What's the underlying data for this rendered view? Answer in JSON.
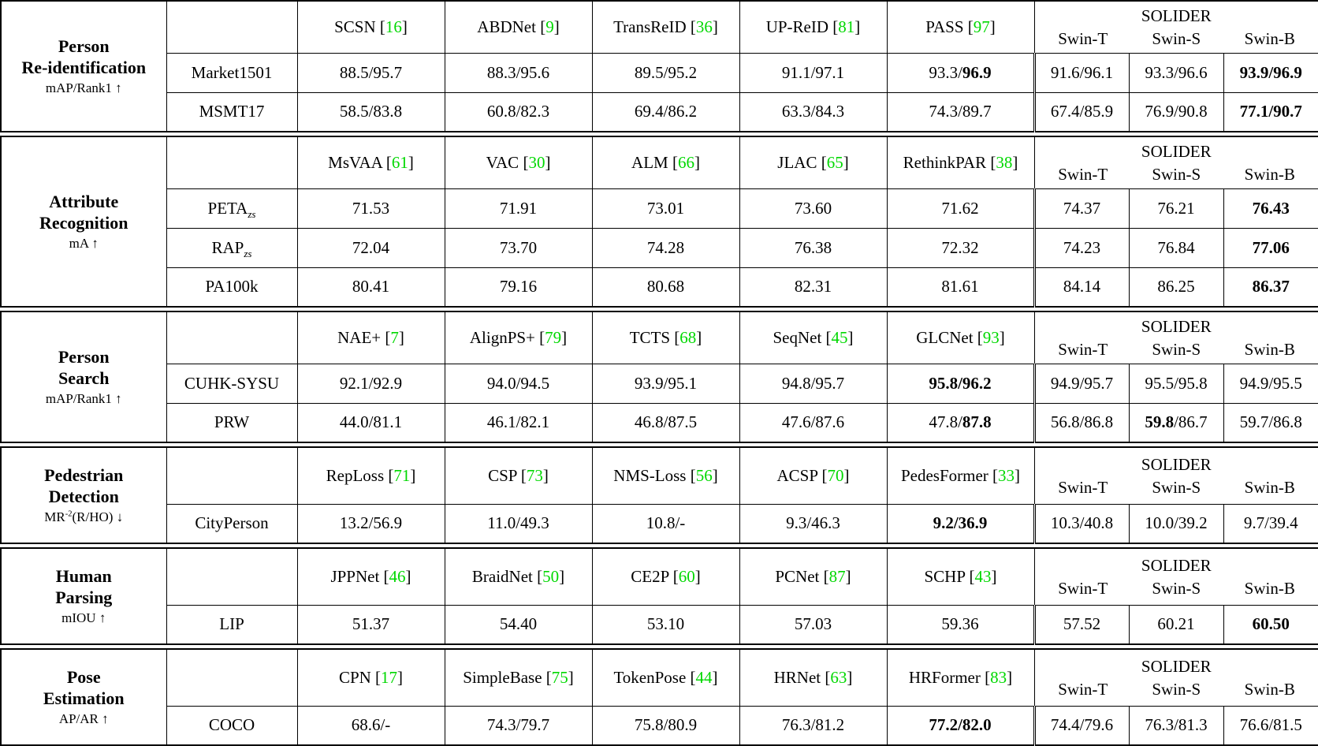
{
  "accent": {
    "citation_color": "#00d800"
  },
  "solider": {
    "label": "SOLIDER",
    "variants": [
      "Swin-T",
      "Swin-S",
      "Swin-B"
    ]
  },
  "sections": [
    {
      "task": [
        "Person",
        "Re-identification"
      ],
      "metric": "mAP/Rank1 ↑",
      "methods": [
        "SCSN [{{16}}]",
        "ABDNet [{{9}}]",
        "TransReID [{{36}}]",
        "UP-ReID [{{81}}]",
        "PASS [{{97}}]"
      ],
      "rows": [
        {
          "dataset": "Market1501",
          "values": [
            "88.5/95.7",
            "88.3/95.6",
            "89.5/95.2",
            "91.1/97.1",
            "93.3/*96.9*"
          ],
          "solider_values": [
            "91.6/96.1",
            "93.3/96.6",
            "*93.9/96.9*"
          ]
        },
        {
          "dataset": "MSMT17",
          "values": [
            "58.5/83.8",
            "60.8/82.3",
            "69.4/86.2",
            "63.3/84.3",
            "74.3/89.7"
          ],
          "solider_values": [
            "67.4/85.9",
            "76.9/90.8",
            "*77.1/90.7*"
          ]
        }
      ]
    },
    {
      "task": [
        "Attribute",
        "Recognition"
      ],
      "metric": "mA ↑",
      "methods": [
        "MsVAA [{{61}}]",
        "VAC [{{30}}]",
        "ALM [{{66}}]",
        "JLAC [{{65}}]",
        "RethinkPAR [{{38}}]"
      ],
      "rows": [
        {
          "dataset": "PETA~zs~",
          "values": [
            "71.53",
            "71.91",
            "73.01",
            "73.60",
            "71.62"
          ],
          "solider_values": [
            "74.37",
            "76.21",
            "*76.43*"
          ]
        },
        {
          "dataset": "RAP~zs~",
          "values": [
            "72.04",
            "73.70",
            "74.28",
            "76.38",
            "72.32"
          ],
          "solider_values": [
            "74.23",
            "76.84",
            "*77.06*"
          ]
        },
        {
          "dataset": "PA100k",
          "values": [
            "80.41",
            "79.16",
            "80.68",
            "82.31",
            "81.61"
          ],
          "solider_values": [
            "84.14",
            "86.25",
            "*86.37*"
          ]
        }
      ]
    },
    {
      "task": [
        "Person",
        "Search"
      ],
      "metric": "mAP/Rank1 ↑",
      "methods": [
        "NAE+ [{{7}}]",
        "AlignPS+ [{{79}}]",
        "TCTS [{{68}}]",
        "SeqNet [{{45}}]",
        "GLCNet [{{93}}]"
      ],
      "rows": [
        {
          "dataset": "CUHK-SYSU",
          "values": [
            "92.1/92.9",
            "94.0/94.5",
            "93.9/95.1",
            "94.8/95.7",
            "*95.8/96.2*"
          ],
          "solider_values": [
            "94.9/95.7",
            "95.5/95.8",
            "94.9/95.5"
          ]
        },
        {
          "dataset": "PRW",
          "values": [
            "44.0/81.1",
            "46.1/82.1",
            "46.8/87.5",
            "47.6/87.6",
            "47.8/*87.8*"
          ],
          "solider_values": [
            "56.8/86.8",
            "*59.8*/86.7",
            "59.7/86.8"
          ]
        }
      ]
    },
    {
      "task": [
        "Pedestrian",
        "Detection"
      ],
      "metric": "MR^-2^(R/HO) ↓",
      "methods": [
        "RepLoss [{{71}}]",
        "CSP [{{73}}]",
        "NMS-Loss [{{56}}]",
        "ACSP [{{70}}]",
        "PedesFormer [{{33}}]"
      ],
      "rows": [
        {
          "dataset": "CityPerson",
          "values": [
            "13.2/56.9",
            "11.0/49.3",
            "10.8/-",
            "9.3/46.3",
            "*9.2/36.9*"
          ],
          "solider_values": [
            "10.3/40.8",
            "10.0/39.2",
            "9.7/39.4"
          ]
        }
      ]
    },
    {
      "task": [
        "Human",
        "Parsing"
      ],
      "metric": "mIOU ↑",
      "methods": [
        "JPPNet [{{46}}]",
        "BraidNet [{{50}}]",
        "CE2P [{{60}}]",
        "PCNet [{{87}}]",
        "SCHP [{{43}}]"
      ],
      "rows": [
        {
          "dataset": "LIP",
          "values": [
            "51.37",
            "54.40",
            "53.10",
            "57.03",
            "59.36"
          ],
          "solider_values": [
            "57.52",
            "60.21",
            "*60.50*"
          ]
        }
      ]
    },
    {
      "task": [
        "Pose",
        "Estimation"
      ],
      "metric": "AP/AR ↑",
      "methods": [
        "CPN [{{17}}]",
        "SimpleBase [{{75}}]",
        "TokenPose [{{44}}]",
        "HRNet [{{63}}]",
        "HRFormer [{{83}}]"
      ],
      "rows": [
        {
          "dataset": "COCO",
          "values": [
            "68.6/-",
            "74.3/79.7",
            "75.8/80.9",
            "76.3/81.2",
            "*77.2/82.0*"
          ],
          "solider_values": [
            "74.4/79.6",
            "76.3/81.3",
            "76.6/81.5"
          ]
        }
      ]
    }
  ]
}
